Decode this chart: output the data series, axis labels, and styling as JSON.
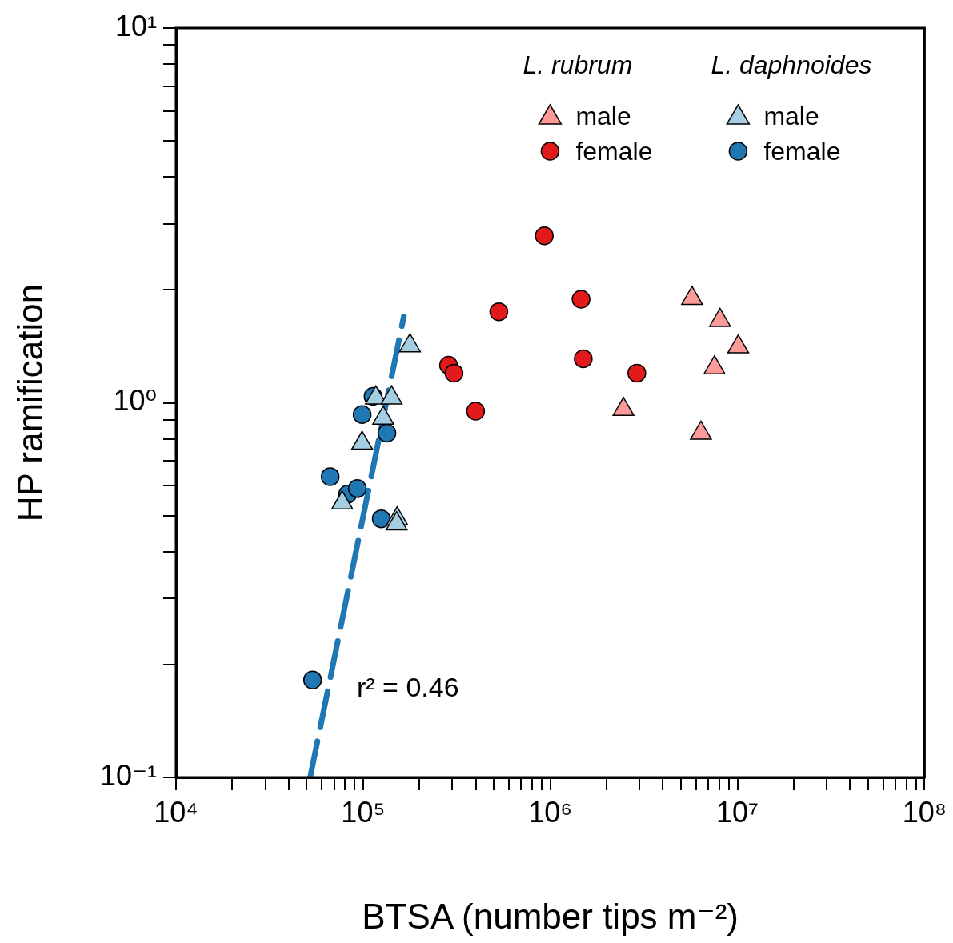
{
  "chart_data": {
    "type": "scatter",
    "xlabel": "BTSA (number tips m⁻²)",
    "ylabel": "HP ramification",
    "legend_title": [
      "L. rubrum",
      "L. daphnoides"
    ],
    "legend": "top right",
    "grid": false,
    "log": "xy",
    "xlim": [
      10000,
      100000000
    ],
    "ylim": [
      0.1,
      10
    ],
    "xticks": [
      {
        "value": 10000,
        "label": "10⁴"
      },
      {
        "value": 20000,
        "label": null
      },
      {
        "value": 30000,
        "label": null
      },
      {
        "value": 40000,
        "label": null
      },
      {
        "value": 50000,
        "label": null
      },
      {
        "value": 60000,
        "label": null
      },
      {
        "value": 70000,
        "label": null
      },
      {
        "value": 80000,
        "label": null
      },
      {
        "value": 90000,
        "label": null
      },
      {
        "value": 100000,
        "label": "10⁵"
      },
      {
        "value": 200000,
        "label": null
      },
      {
        "value": 300000,
        "label": null
      },
      {
        "value": 400000,
        "label": null
      },
      {
        "value": 500000,
        "label": null
      },
      {
        "value": 600000,
        "label": null
      },
      {
        "value": 700000,
        "label": null
      },
      {
        "value": 800000,
        "label": null
      },
      {
        "value": 900000,
        "label": null
      },
      {
        "value": 1000000,
        "label": "10⁶"
      },
      {
        "value": 2000000,
        "label": null
      },
      {
        "value": 3000000,
        "label": null
      },
      {
        "value": 4000000,
        "label": null
      },
      {
        "value": 5000000,
        "label": null
      },
      {
        "value": 6000000,
        "label": null
      },
      {
        "value": 7000000,
        "label": null
      },
      {
        "value": 8000000,
        "label": null
      },
      {
        "value": 9000000,
        "label": null
      },
      {
        "value": 10000000,
        "label": "10⁷"
      },
      {
        "value": 20000000,
        "label": null
      },
      {
        "value": 30000000,
        "label": null
      },
      {
        "value": 40000000,
        "label": null
      },
      {
        "value": 50000000,
        "label": null
      },
      {
        "value": 60000000,
        "label": null
      },
      {
        "value": 70000000,
        "label": null
      },
      {
        "value": 80000000,
        "label": null
      },
      {
        "value": 90000000,
        "label": null
      },
      {
        "value": 100000000,
        "label": "10⁸"
      }
    ],
    "yticks": [
      {
        "value": 0.1,
        "label": "10⁻¹"
      },
      {
        "value": 0.2,
        "label": null
      },
      {
        "value": 0.3,
        "label": null
      },
      {
        "value": 0.4,
        "label": null
      },
      {
        "value": 0.5,
        "label": null
      },
      {
        "value": 0.6,
        "label": null
      },
      {
        "value": 0.7,
        "label": null
      },
      {
        "value": 0.8,
        "label": null
      },
      {
        "value": 0.9,
        "label": null
      },
      {
        "value": 1,
        "label": "10⁰"
      },
      {
        "value": 2,
        "label": null
      },
      {
        "value": 3,
        "label": null
      },
      {
        "value": 4,
        "label": null
      },
      {
        "value": 5,
        "label": null
      },
      {
        "value": 6,
        "label": null
      },
      {
        "value": 7,
        "label": null
      },
      {
        "value": 8,
        "label": null
      },
      {
        "value": 9,
        "label": null
      },
      {
        "value": 10,
        "label": "10¹"
      }
    ],
    "annotations": [
      "r² = 0.46"
    ],
    "series": [
      {
        "name": "male",
        "color": "#fb9a99",
        "marker": "triangle",
        "x": [
          5720000,
          8070000,
          10100000,
          7540000,
          2460000,
          6380000
        ],
        "values": [
          1.9,
          1.66,
          1.41,
          1.24,
          0.96,
          0.83
        ]
      },
      {
        "name": "female",
        "color": "#e31a1c",
        "marker": "circle",
        "x": [
          929000,
          531000,
          1460000,
          1500000,
          286000,
          306000,
          399000,
          2900000
        ],
        "values": [
          2.79,
          1.75,
          1.89,
          1.31,
          1.26,
          1.2,
          0.95,
          1.2
        ]
      },
      {
        "name": "male",
        "color": "#a6cee3",
        "marker": "triangle",
        "x": [
          178000,
          117000,
          142000,
          128000,
          98800,
          77300,
          152000,
          151000
        ],
        "values": [
          1.42,
          1.03,
          1.03,
          0.91,
          0.78,
          0.54,
          0.49,
          0.475
        ]
      },
      {
        "name": "female",
        "color": "#1f78b4",
        "marker": "circle",
        "x": [
          113000,
          98800,
          134000,
          66700,
          82700,
          93100,
          125000,
          53700
        ],
        "values": [
          1.04,
          0.93,
          0.83,
          0.635,
          0.57,
          0.59,
          0.49,
          0.182
        ]
      },
      {
        "type": "line",
        "color": "#1f78b4",
        "marker": "none",
        "line_style": "dashed",
        "x": [
          52100,
          165000
        ],
        "values": [
          0.1,
          1.7
        ]
      }
    ]
  }
}
